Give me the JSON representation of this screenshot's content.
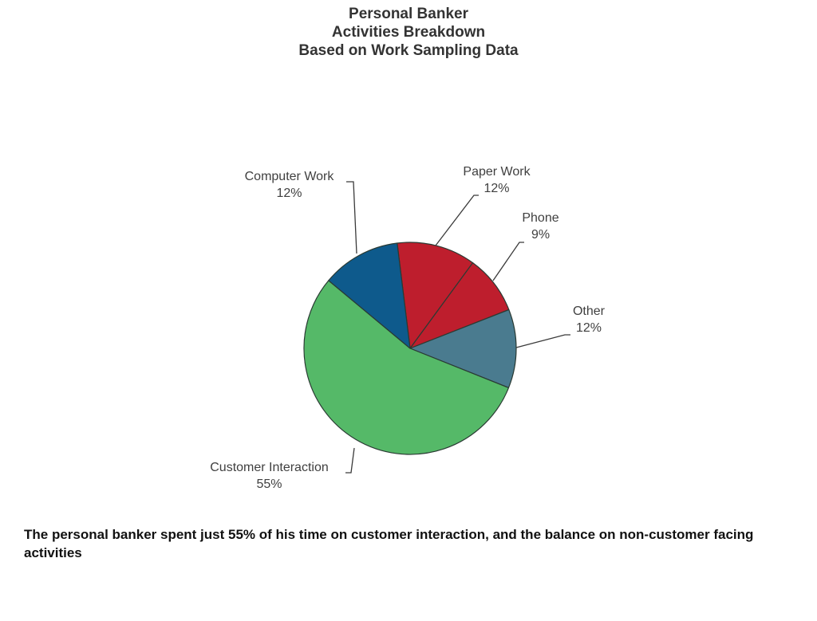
{
  "title": {
    "line1": "Personal Banker",
    "line2": "Activities Breakdown",
    "line3": "Based on Work Sampling Data"
  },
  "labels": {
    "computer_work": {
      "name": "Computer Work",
      "pct": "12%"
    },
    "paper_work": {
      "name": "Paper Work",
      "pct": "12%"
    },
    "phone": {
      "name": "Phone",
      "pct": "9%"
    },
    "other": {
      "name": "Other",
      "pct": "12%"
    },
    "customer_interaction": {
      "name": "Customer Interaction",
      "pct": "55%"
    }
  },
  "caption": "The personal banker spent just 55% of his time on customer  interaction, and the balance on non-customer facing activities",
  "chart_data": {
    "type": "pie",
    "title": "Personal Banker Activities Breakdown Based on Work Sampling Data",
    "categories": [
      "Paper Work",
      "Phone",
      "Other",
      "Customer Interaction",
      "Computer Work"
    ],
    "values": [
      12,
      9,
      12,
      55,
      12
    ],
    "unit": "%",
    "colors": [
      "#BE1E2D",
      "#BE1E2D",
      "#4A7B8F",
      "#55B968",
      "#0E5A8C"
    ],
    "start_angle_deg": -7,
    "direction": "clockwise",
    "legend": "none (data labels with leader lines)",
    "annotation": "The personal banker spent just 55% of his time on customer  interaction, and the balance on non-customer facing activities"
  }
}
